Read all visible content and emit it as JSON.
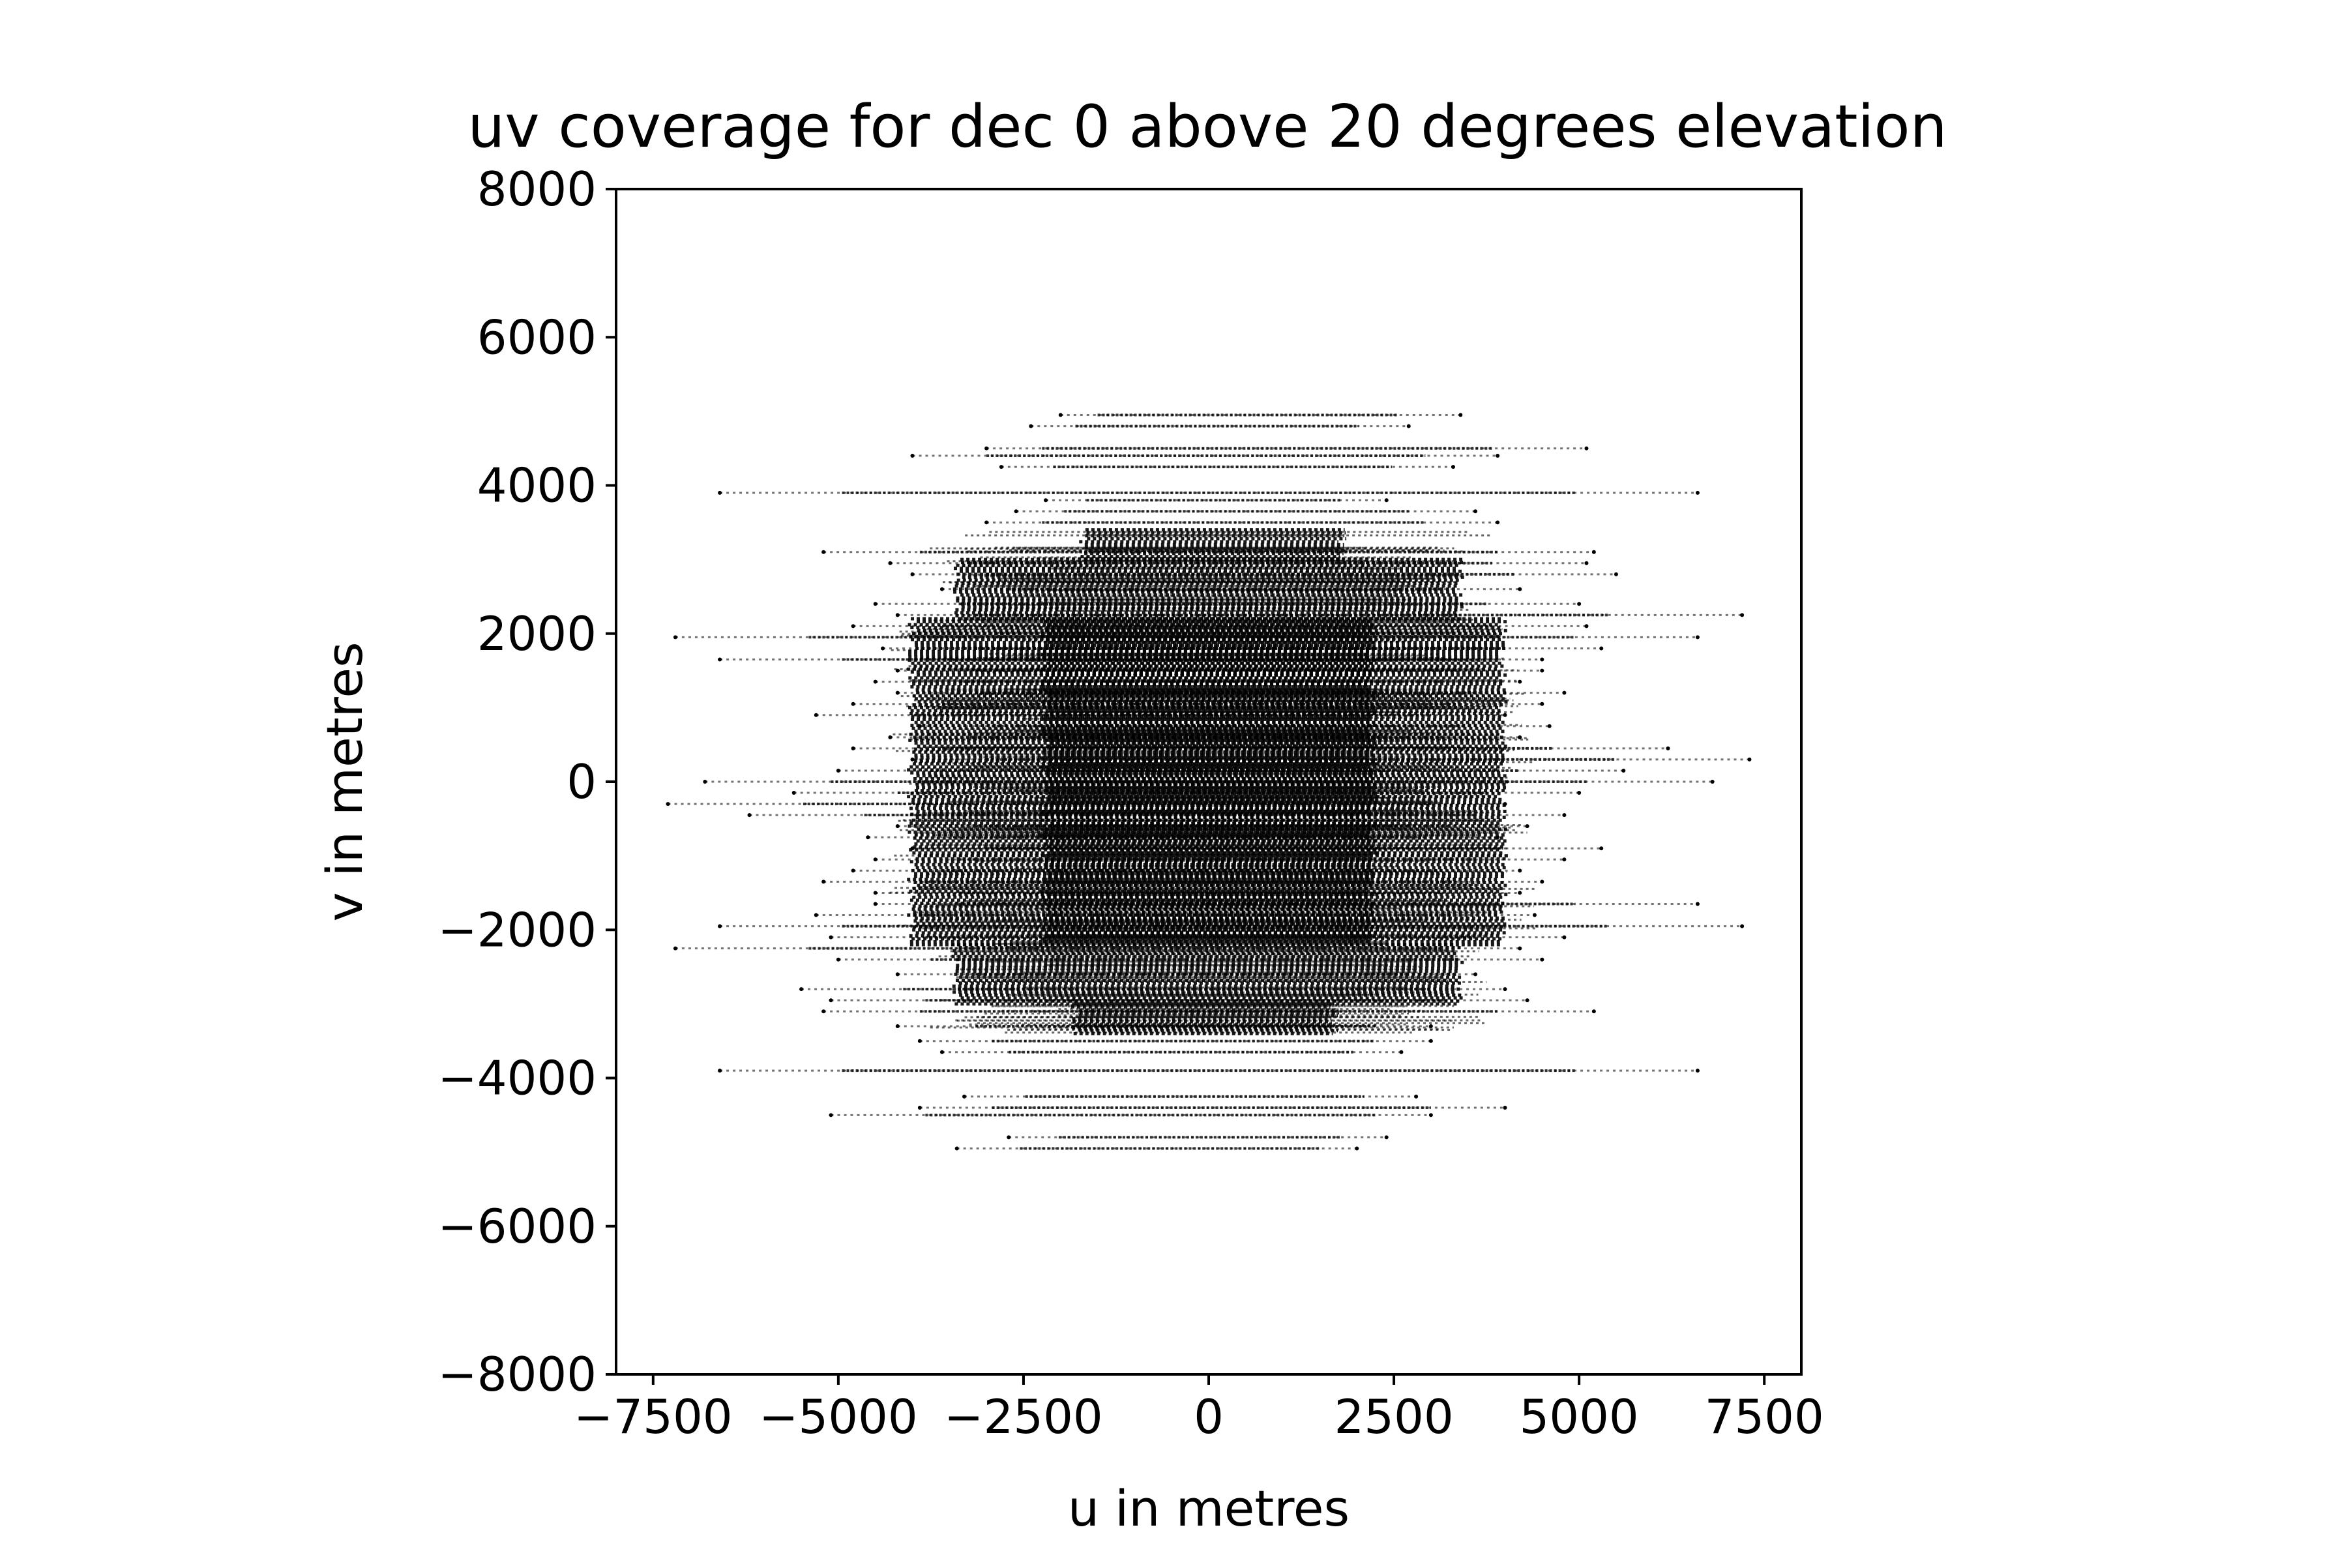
{
  "chart_data": {
    "type": "scatter",
    "title": "uv coverage for dec 0 above 20 degrees elevation",
    "xlabel": "u in metres",
    "ylabel": "v in metres",
    "xlim": [
      -8000,
      8000
    ],
    "ylim": [
      -8000,
      8000
    ],
    "xticks": [
      {
        "value": -7500,
        "label": "−7500"
      },
      {
        "value": -5000,
        "label": "−5000"
      },
      {
        "value": -2500,
        "label": "−2500"
      },
      {
        "value": 0,
        "label": "0"
      },
      {
        "value": 2500,
        "label": "2500"
      },
      {
        "value": 5000,
        "label": "5000"
      },
      {
        "value": 7500,
        "label": "7500"
      }
    ],
    "yticks": [
      {
        "value": -8000,
        "label": "−8000"
      },
      {
        "value": -6000,
        "label": "−6000"
      },
      {
        "value": -4000,
        "label": "−4000"
      },
      {
        "value": -2000,
        "label": "−2000"
      },
      {
        "value": 0,
        "label": "0"
      },
      {
        "value": 2000,
        "label": "2000"
      },
      {
        "value": 4000,
        "label": "4000"
      },
      {
        "value": 6000,
        "label": "6000"
      },
      {
        "value": 8000,
        "label": "8000"
      }
    ],
    "grid": false,
    "marker_color": "#000000",
    "series": [
      {
        "tracks": [
          {
            "v": 4950,
            "u_min": -2000,
            "u_max": 3400
          },
          {
            "v": 4800,
            "u_min": -2400,
            "u_max": 2700
          },
          {
            "v": 4500,
            "u_min": -3000,
            "u_max": 5100
          },
          {
            "v": 4400,
            "u_min": -4000,
            "u_max": 3900
          },
          {
            "v": 4250,
            "u_min": -2800,
            "u_max": 3300
          },
          {
            "v": 3900,
            "u_min": -6600,
            "u_max": 6600
          },
          {
            "v": 3800,
            "u_min": -2200,
            "u_max": 2400
          },
          {
            "v": 3650,
            "u_min": -2600,
            "u_max": 3600
          },
          {
            "v": 3500,
            "u_min": -3000,
            "u_max": 3900
          },
          {
            "v": 3100,
            "u_min": -5200,
            "u_max": 5200
          },
          {
            "v": 2950,
            "u_min": -4300,
            "u_max": 5100
          },
          {
            "v": 2800,
            "u_min": -4000,
            "u_max": 5500
          },
          {
            "v": 2600,
            "u_min": -3600,
            "u_max": 4200
          },
          {
            "v": 2400,
            "u_min": -4500,
            "u_max": 5000
          },
          {
            "v": 2250,
            "u_min": -4200,
            "u_max": 7200
          },
          {
            "v": 2100,
            "u_min": -4800,
            "u_max": 5100
          },
          {
            "v": 1950,
            "u_min": -7200,
            "u_max": 6600
          },
          {
            "v": 1800,
            "u_min": -4400,
            "u_max": 5300
          },
          {
            "v": 1650,
            "u_min": -6600,
            "u_max": 4500
          },
          {
            "v": 1500,
            "u_min": -4200,
            "u_max": 4500
          },
          {
            "v": 1350,
            "u_min": -4500,
            "u_max": 4200
          },
          {
            "v": 1200,
            "u_min": -4200,
            "u_max": 4800
          },
          {
            "v": 1050,
            "u_min": -4800,
            "u_max": 4500
          },
          {
            "v": 900,
            "u_min": -5300,
            "u_max": 4000
          },
          {
            "v": 750,
            "u_min": -3900,
            "u_max": 4600
          },
          {
            "v": 600,
            "u_min": -4300,
            "u_max": 4200
          },
          {
            "v": 450,
            "u_min": -4800,
            "u_max": 6200
          },
          {
            "v": 300,
            "u_min": -4000,
            "u_max": 7300
          },
          {
            "v": 150,
            "u_min": -5000,
            "u_max": 5600
          },
          {
            "v": 0,
            "u_min": -6800,
            "u_max": 6800
          },
          {
            "v": -150,
            "u_min": -5600,
            "u_max": 5000
          },
          {
            "v": -300,
            "u_min": -7300,
            "u_max": 4000
          },
          {
            "v": -450,
            "u_min": -6200,
            "u_max": 4800
          },
          {
            "v": -600,
            "u_min": -4200,
            "u_max": 4300
          },
          {
            "v": -750,
            "u_min": -4600,
            "u_max": 3900
          },
          {
            "v": -900,
            "u_min": -4000,
            "u_max": 5300
          },
          {
            "v": -1050,
            "u_min": -4500,
            "u_max": 4800
          },
          {
            "v": -1200,
            "u_min": -4800,
            "u_max": 4200
          },
          {
            "v": -1350,
            "u_min": -5200,
            "u_max": 4500
          },
          {
            "v": -1500,
            "u_min": -4500,
            "u_max": 4200
          },
          {
            "v": -1650,
            "u_min": -4500,
            "u_max": 6600
          },
          {
            "v": -1800,
            "u_min": -5300,
            "u_max": 4400
          },
          {
            "v": -1950,
            "u_min": -6600,
            "u_max": 7200
          },
          {
            "v": -2100,
            "u_min": -5100,
            "u_max": 4800
          },
          {
            "v": -2250,
            "u_min": -7200,
            "u_max": 4200
          },
          {
            "v": -2400,
            "u_min": -5000,
            "u_max": 4500
          },
          {
            "v": -2600,
            "u_min": -4200,
            "u_max": 3600
          },
          {
            "v": -2800,
            "u_min": -5500,
            "u_max": 4000
          },
          {
            "v": -2950,
            "u_min": -5100,
            "u_max": 4300
          },
          {
            "v": -3100,
            "u_min": -5200,
            "u_max": 5200
          },
          {
            "v": -3300,
            "u_min": -4200,
            "u_max": 3000
          },
          {
            "v": -3500,
            "u_min": -3900,
            "u_max": 3000
          },
          {
            "v": -3650,
            "u_min": -3600,
            "u_max": 2600
          },
          {
            "v": -3900,
            "u_min": -6600,
            "u_max": 6600
          },
          {
            "v": -4250,
            "u_min": -3300,
            "u_max": 2800
          },
          {
            "v": -4400,
            "u_min": -3900,
            "u_max": 4000
          },
          {
            "v": -4500,
            "u_min": -5100,
            "u_max": 3000
          },
          {
            "v": -4800,
            "u_min": -2700,
            "u_max": 2400
          },
          {
            "v": -4950,
            "u_min": -3400,
            "u_max": 2000
          }
        ],
        "dense_core": [
          {
            "v_min": 3000,
            "v_max": 3400,
            "u_min": -1700,
            "u_max": 1800
          },
          {
            "v_min": -3400,
            "v_max": -3000,
            "u_min": -1800,
            "u_max": 1700
          },
          {
            "v_min": 2200,
            "v_max": 3000,
            "u_min": -3400,
            "u_max": 3400
          },
          {
            "v_min": -3000,
            "v_max": -2200,
            "u_min": -3400,
            "u_max": 3400
          },
          {
            "v_min": -2200,
            "v_max": 2200,
            "u_min": -4000,
            "u_max": 4000
          },
          {
            "v_min": -2200,
            "v_max": 2200,
            "u_min": -2200,
            "u_max": 2200
          }
        ]
      }
    ]
  }
}
